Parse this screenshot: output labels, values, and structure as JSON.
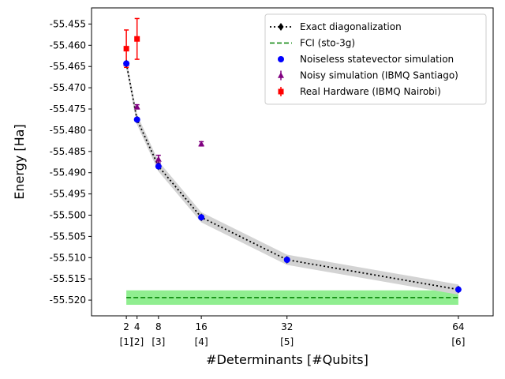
{
  "chart_data": {
    "type": "line",
    "title": "",
    "xlabel": "#Determinants [#Qubits]",
    "ylabel": "Energy [Ha]",
    "xlim": [
      -4.5,
      70.5
    ],
    "ylim": [
      -55.5237,
      -55.4512
    ],
    "x_ticks": [
      {
        "value": 2,
        "line1": "2",
        "line2": "[1]"
      },
      {
        "value": 4,
        "line1": "4",
        "line2": "[2]"
      },
      {
        "value": 8,
        "line1": "8",
        "line2": "[3]"
      },
      {
        "value": 16,
        "line1": "16",
        "line2": "[4]"
      },
      {
        "value": 32,
        "line1": "32",
        "line2": "[5]"
      },
      {
        "value": 64,
        "line1": "64",
        "line2": "[6]"
      }
    ],
    "y_ticks": [
      "-55.455",
      "-55.460",
      "-55.465",
      "-55.470",
      "-55.475",
      "-55.480",
      "-55.485",
      "-55.490",
      "-55.495",
      "-55.500",
      "-55.505",
      "-55.510",
      "-55.515",
      "-55.520"
    ],
    "legend_position": "top-right",
    "fci_band": {
      "x": [
        2,
        64
      ],
      "y": [
        -55.5211,
        -55.5177
      ],
      "color": "#90ee90"
    },
    "uncertainty_band": {
      "halfwidth": 0.0012,
      "color": "#d3d3d3"
    },
    "series": [
      {
        "name": "Exact diagonalization",
        "style": "dotted-line-diamond",
        "color": "#000000",
        "x": [
          2,
          4,
          8,
          16,
          32,
          64
        ],
        "y": [
          -55.4643,
          -55.4775,
          -55.4885,
          -55.5005,
          -55.5105,
          -55.5175
        ]
      },
      {
        "name": "FCI (sto-3g)",
        "style": "dashed-line",
        "color": "#008000",
        "x": [
          2,
          64
        ],
        "y": [
          -55.5194,
          -55.5194
        ]
      },
      {
        "name": "Noiseless statevector simulation",
        "style": "circle",
        "color": "#0000ff",
        "x": [
          2,
          4,
          8,
          16,
          32,
          64
        ],
        "y": [
          -55.4643,
          -55.4775,
          -55.4885,
          -55.5005,
          -55.5105,
          -55.5175
        ]
      },
      {
        "name": "Noisy simulation (IBMQ Santiago)",
        "style": "triangle-errorbar",
        "color": "#800080",
        "x": [
          2,
          4,
          8,
          16
        ],
        "y": [
          -55.4643,
          -55.4745,
          -55.4868,
          -55.4832
        ],
        "err": [
          0.0003,
          0.0005,
          0.0009,
          0.0005
        ]
      },
      {
        "name": "Real Hardware (IBMQ Nairobi)",
        "style": "square-errorbar",
        "color": "#ff0000",
        "x": [
          2,
          4
        ],
        "y": [
          -55.4608,
          -55.4585
        ],
        "err": [
          0.0044,
          0.0048
        ]
      }
    ]
  }
}
